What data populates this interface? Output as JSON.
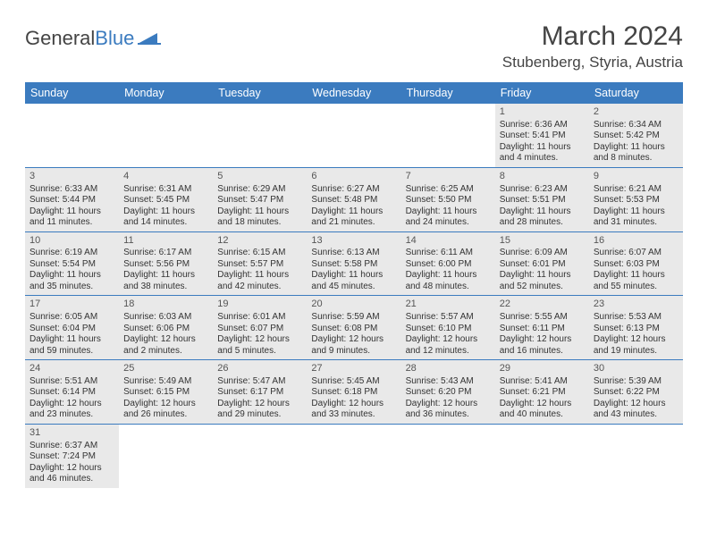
{
  "logo": {
    "part1": "General",
    "part2": "Blue"
  },
  "title": "March 2024",
  "subtitle": "Stubenberg, Styria, Austria",
  "colors": {
    "header_bg": "#3b7bbf",
    "header_text": "#ffffff",
    "shade_bg": "#e9e9e9",
    "text": "#333333",
    "rule": "#3b7bbf"
  },
  "day_labels": [
    "Sunday",
    "Monday",
    "Tuesday",
    "Wednesday",
    "Thursday",
    "Friday",
    "Saturday"
  ],
  "weeks": [
    [
      null,
      null,
      null,
      null,
      null,
      {
        "n": "1",
        "sunrise": "Sunrise: 6:36 AM",
        "sunset": "Sunset: 5:41 PM",
        "day1": "Daylight: 11 hours",
        "day2": "and 4 minutes."
      },
      {
        "n": "2",
        "sunrise": "Sunrise: 6:34 AM",
        "sunset": "Sunset: 5:42 PM",
        "day1": "Daylight: 11 hours",
        "day2": "and 8 minutes."
      }
    ],
    [
      {
        "n": "3",
        "sunrise": "Sunrise: 6:33 AM",
        "sunset": "Sunset: 5:44 PM",
        "day1": "Daylight: 11 hours",
        "day2": "and 11 minutes."
      },
      {
        "n": "4",
        "sunrise": "Sunrise: 6:31 AM",
        "sunset": "Sunset: 5:45 PM",
        "day1": "Daylight: 11 hours",
        "day2": "and 14 minutes."
      },
      {
        "n": "5",
        "sunrise": "Sunrise: 6:29 AM",
        "sunset": "Sunset: 5:47 PM",
        "day1": "Daylight: 11 hours",
        "day2": "and 18 minutes."
      },
      {
        "n": "6",
        "sunrise": "Sunrise: 6:27 AM",
        "sunset": "Sunset: 5:48 PM",
        "day1": "Daylight: 11 hours",
        "day2": "and 21 minutes."
      },
      {
        "n": "7",
        "sunrise": "Sunrise: 6:25 AM",
        "sunset": "Sunset: 5:50 PM",
        "day1": "Daylight: 11 hours",
        "day2": "and 24 minutes."
      },
      {
        "n": "8",
        "sunrise": "Sunrise: 6:23 AM",
        "sunset": "Sunset: 5:51 PM",
        "day1": "Daylight: 11 hours",
        "day2": "and 28 minutes."
      },
      {
        "n": "9",
        "sunrise": "Sunrise: 6:21 AM",
        "sunset": "Sunset: 5:53 PM",
        "day1": "Daylight: 11 hours",
        "day2": "and 31 minutes."
      }
    ],
    [
      {
        "n": "10",
        "sunrise": "Sunrise: 6:19 AM",
        "sunset": "Sunset: 5:54 PM",
        "day1": "Daylight: 11 hours",
        "day2": "and 35 minutes."
      },
      {
        "n": "11",
        "sunrise": "Sunrise: 6:17 AM",
        "sunset": "Sunset: 5:56 PM",
        "day1": "Daylight: 11 hours",
        "day2": "and 38 minutes."
      },
      {
        "n": "12",
        "sunrise": "Sunrise: 6:15 AM",
        "sunset": "Sunset: 5:57 PM",
        "day1": "Daylight: 11 hours",
        "day2": "and 42 minutes."
      },
      {
        "n": "13",
        "sunrise": "Sunrise: 6:13 AM",
        "sunset": "Sunset: 5:58 PM",
        "day1": "Daylight: 11 hours",
        "day2": "and 45 minutes."
      },
      {
        "n": "14",
        "sunrise": "Sunrise: 6:11 AM",
        "sunset": "Sunset: 6:00 PM",
        "day1": "Daylight: 11 hours",
        "day2": "and 48 minutes."
      },
      {
        "n": "15",
        "sunrise": "Sunrise: 6:09 AM",
        "sunset": "Sunset: 6:01 PM",
        "day1": "Daylight: 11 hours",
        "day2": "and 52 minutes."
      },
      {
        "n": "16",
        "sunrise": "Sunrise: 6:07 AM",
        "sunset": "Sunset: 6:03 PM",
        "day1": "Daylight: 11 hours",
        "day2": "and 55 minutes."
      }
    ],
    [
      {
        "n": "17",
        "sunrise": "Sunrise: 6:05 AM",
        "sunset": "Sunset: 6:04 PM",
        "day1": "Daylight: 11 hours",
        "day2": "and 59 minutes."
      },
      {
        "n": "18",
        "sunrise": "Sunrise: 6:03 AM",
        "sunset": "Sunset: 6:06 PM",
        "day1": "Daylight: 12 hours",
        "day2": "and 2 minutes."
      },
      {
        "n": "19",
        "sunrise": "Sunrise: 6:01 AM",
        "sunset": "Sunset: 6:07 PM",
        "day1": "Daylight: 12 hours",
        "day2": "and 5 minutes."
      },
      {
        "n": "20",
        "sunrise": "Sunrise: 5:59 AM",
        "sunset": "Sunset: 6:08 PM",
        "day1": "Daylight: 12 hours",
        "day2": "and 9 minutes."
      },
      {
        "n": "21",
        "sunrise": "Sunrise: 5:57 AM",
        "sunset": "Sunset: 6:10 PM",
        "day1": "Daylight: 12 hours",
        "day2": "and 12 minutes."
      },
      {
        "n": "22",
        "sunrise": "Sunrise: 5:55 AM",
        "sunset": "Sunset: 6:11 PM",
        "day1": "Daylight: 12 hours",
        "day2": "and 16 minutes."
      },
      {
        "n": "23",
        "sunrise": "Sunrise: 5:53 AM",
        "sunset": "Sunset: 6:13 PM",
        "day1": "Daylight: 12 hours",
        "day2": "and 19 minutes."
      }
    ],
    [
      {
        "n": "24",
        "sunrise": "Sunrise: 5:51 AM",
        "sunset": "Sunset: 6:14 PM",
        "day1": "Daylight: 12 hours",
        "day2": "and 23 minutes."
      },
      {
        "n": "25",
        "sunrise": "Sunrise: 5:49 AM",
        "sunset": "Sunset: 6:15 PM",
        "day1": "Daylight: 12 hours",
        "day2": "and 26 minutes."
      },
      {
        "n": "26",
        "sunrise": "Sunrise: 5:47 AM",
        "sunset": "Sunset: 6:17 PM",
        "day1": "Daylight: 12 hours",
        "day2": "and 29 minutes."
      },
      {
        "n": "27",
        "sunrise": "Sunrise: 5:45 AM",
        "sunset": "Sunset: 6:18 PM",
        "day1": "Daylight: 12 hours",
        "day2": "and 33 minutes."
      },
      {
        "n": "28",
        "sunrise": "Sunrise: 5:43 AM",
        "sunset": "Sunset: 6:20 PM",
        "day1": "Daylight: 12 hours",
        "day2": "and 36 minutes."
      },
      {
        "n": "29",
        "sunrise": "Sunrise: 5:41 AM",
        "sunset": "Sunset: 6:21 PM",
        "day1": "Daylight: 12 hours",
        "day2": "and 40 minutes."
      },
      {
        "n": "30",
        "sunrise": "Sunrise: 5:39 AM",
        "sunset": "Sunset: 6:22 PM",
        "day1": "Daylight: 12 hours",
        "day2": "and 43 minutes."
      }
    ],
    [
      {
        "n": "31",
        "sunrise": "Sunrise: 6:37 AM",
        "sunset": "Sunset: 7:24 PM",
        "day1": "Daylight: 12 hours",
        "day2": "and 46 minutes."
      },
      null,
      null,
      null,
      null,
      null,
      null
    ]
  ]
}
